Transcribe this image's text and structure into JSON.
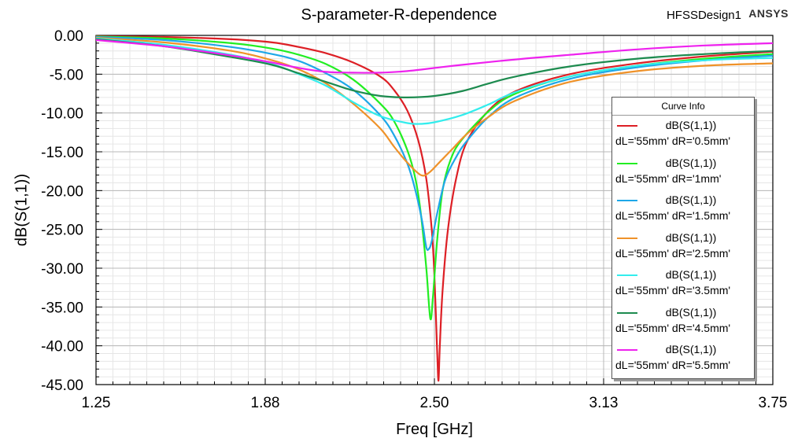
{
  "header": {
    "title": "S-parameter-R-dependence",
    "design": "HFSSDesign1",
    "brand": "ANSYS"
  },
  "legend": {
    "title": "Curve Info"
  },
  "chart_data": {
    "type": "line",
    "title": "S-parameter-R-dependence",
    "xlabel": "Freq [GHz]",
    "ylabel": "dB(S(1,1))",
    "xlim": [
      1.25,
      3.75
    ],
    "ylim": [
      -45,
      0
    ],
    "xticks": [
      "1.25",
      "1.88",
      "2.50",
      "3.13",
      "3.75"
    ],
    "xtick_values": [
      1.25,
      1.875,
      2.5,
      3.125,
      3.75
    ],
    "yticks": [
      "0.00",
      "-5.00",
      "-10.00",
      "-15.00",
      "-20.00",
      "-25.00",
      "-30.00",
      "-35.00",
      "-40.00",
      "-45.00"
    ],
    "ytick_values": [
      0,
      -5,
      -10,
      -15,
      -20,
      -25,
      -30,
      -35,
      -40,
      -45
    ],
    "grid": true,
    "legend_position": "right",
    "series": [
      {
        "name": "dB(S(1,1))",
        "label2": "dL='55mm' dR='0.5mm'",
        "color": "#dd1f25",
        "points": [
          [
            1.25,
            -0.1
          ],
          [
            1.5,
            -0.2
          ],
          [
            1.75,
            -0.5
          ],
          [
            1.9,
            -0.9
          ],
          [
            2.0,
            -1.5
          ],
          [
            2.1,
            -2.3
          ],
          [
            2.2,
            -3.5
          ],
          [
            2.3,
            -5.3
          ],
          [
            2.35,
            -7.0
          ],
          [
            2.4,
            -9.7
          ],
          [
            2.44,
            -13.5
          ],
          [
            2.47,
            -18.5
          ],
          [
            2.49,
            -25.0
          ],
          [
            2.5,
            -31.0
          ],
          [
            2.51,
            -40.5
          ],
          [
            2.515,
            -44.5
          ],
          [
            2.52,
            -40.0
          ],
          [
            2.53,
            -33.0
          ],
          [
            2.55,
            -25.0
          ],
          [
            2.58,
            -18.5
          ],
          [
            2.62,
            -13.7
          ],
          [
            2.7,
            -9.7
          ],
          [
            2.8,
            -7.2
          ],
          [
            3.0,
            -5.0
          ],
          [
            3.25,
            -3.6
          ],
          [
            3.5,
            -2.7
          ],
          [
            3.75,
            -2.1
          ]
        ]
      },
      {
        "name": "dB(S(1,1))",
        "label2": "dL='55mm' dR='1mm'",
        "color": "#22ee22",
        "points": [
          [
            1.25,
            -0.15
          ],
          [
            1.5,
            -0.4
          ],
          [
            1.75,
            -1.0
          ],
          [
            1.9,
            -1.7
          ],
          [
            2.0,
            -2.5
          ],
          [
            2.1,
            -3.7
          ],
          [
            2.2,
            -5.7
          ],
          [
            2.3,
            -8.8
          ],
          [
            2.35,
            -11.0
          ],
          [
            2.4,
            -14.8
          ],
          [
            2.43,
            -18.5
          ],
          [
            2.45,
            -23.0
          ],
          [
            2.47,
            -30.0
          ],
          [
            2.485,
            -36.5
          ],
          [
            2.495,
            -33.5
          ],
          [
            2.51,
            -26.5
          ],
          [
            2.53,
            -20.0
          ],
          [
            2.56,
            -16.0
          ],
          [
            2.6,
            -13.5
          ],
          [
            2.7,
            -9.8
          ],
          [
            2.8,
            -7.5
          ],
          [
            3.0,
            -5.3
          ],
          [
            3.25,
            -3.9
          ],
          [
            3.5,
            -3.0
          ],
          [
            3.75,
            -2.4
          ]
        ]
      },
      {
        "name": "dB(S(1,1))",
        "label2": "dL='55mm' dR='1.5mm'",
        "color": "#1ea7e8",
        "points": [
          [
            1.25,
            -0.2
          ],
          [
            1.5,
            -0.6
          ],
          [
            1.75,
            -1.5
          ],
          [
            1.9,
            -2.4
          ],
          [
            2.0,
            -3.3
          ],
          [
            2.1,
            -4.9
          ],
          [
            2.2,
            -7.0
          ],
          [
            2.3,
            -10.3
          ],
          [
            2.35,
            -12.8
          ],
          [
            2.4,
            -16.5
          ],
          [
            2.43,
            -20.0
          ],
          [
            2.455,
            -24.0
          ],
          [
            2.47,
            -27.3
          ],
          [
            2.48,
            -27.5
          ],
          [
            2.49,
            -26.5
          ],
          [
            2.51,
            -23.0
          ],
          [
            2.54,
            -18.6
          ],
          [
            2.58,
            -15.7
          ],
          [
            2.62,
            -13.6
          ],
          [
            2.7,
            -10.5
          ],
          [
            2.8,
            -8.0
          ],
          [
            3.0,
            -5.6
          ],
          [
            3.25,
            -4.1
          ],
          [
            3.5,
            -3.2
          ],
          [
            3.75,
            -2.6
          ]
        ]
      },
      {
        "name": "dB(S(1,1))",
        "label2": "dL='55mm' dR='2.5mm'",
        "color": "#ef9229",
        "points": [
          [
            1.25,
            -0.3
          ],
          [
            1.5,
            -0.9
          ],
          [
            1.75,
            -2.0
          ],
          [
            1.9,
            -3.2
          ],
          [
            2.0,
            -4.4
          ],
          [
            2.1,
            -6.2
          ],
          [
            2.2,
            -8.8
          ],
          [
            2.3,
            -12.0
          ],
          [
            2.35,
            -14.3
          ],
          [
            2.4,
            -16.4
          ],
          [
            2.45,
            -18.0
          ],
          [
            2.48,
            -17.7
          ],
          [
            2.52,
            -16.3
          ],
          [
            2.57,
            -14.5
          ],
          [
            2.62,
            -12.7
          ],
          [
            2.7,
            -10.5
          ],
          [
            2.8,
            -8.4
          ],
          [
            3.0,
            -6.0
          ],
          [
            3.25,
            -4.6
          ],
          [
            3.5,
            -3.9
          ],
          [
            3.75,
            -3.6
          ]
        ]
      },
      {
        "name": "dB(S(1,1))",
        "label2": "dL='55mm' dR='3.5mm'",
        "color": "#33eded",
        "points": [
          [
            1.25,
            -0.4
          ],
          [
            1.5,
            -1.2
          ],
          [
            1.75,
            -2.5
          ],
          [
            1.9,
            -3.7
          ],
          [
            2.0,
            -5.0
          ],
          [
            2.1,
            -6.5
          ],
          [
            2.2,
            -8.6
          ],
          [
            2.3,
            -10.4
          ],
          [
            2.4,
            -11.3
          ],
          [
            2.45,
            -11.4
          ],
          [
            2.5,
            -11.2
          ],
          [
            2.6,
            -10.3
          ],
          [
            2.7,
            -8.9
          ],
          [
            2.8,
            -7.3
          ],
          [
            3.0,
            -5.3
          ],
          [
            3.25,
            -3.9
          ],
          [
            3.5,
            -3.2
          ],
          [
            3.75,
            -2.9
          ]
        ]
      },
      {
        "name": "dB(S(1,1))",
        "label2": "dL='55mm' dR='4.5mm'",
        "color": "#1d8b4f",
        "points": [
          [
            1.25,
            -0.5
          ],
          [
            1.5,
            -1.4
          ],
          [
            1.75,
            -2.8
          ],
          [
            1.9,
            -3.8
          ],
          [
            2.0,
            -4.9
          ],
          [
            2.1,
            -6.0
          ],
          [
            2.2,
            -7.1
          ],
          [
            2.3,
            -7.8
          ],
          [
            2.4,
            -8.0
          ],
          [
            2.5,
            -7.8
          ],
          [
            2.6,
            -7.2
          ],
          [
            2.7,
            -6.2
          ],
          [
            2.8,
            -5.3
          ],
          [
            3.0,
            -4.0
          ],
          [
            3.25,
            -3.0
          ],
          [
            3.5,
            -2.4
          ],
          [
            3.75,
            -2.0
          ]
        ]
      },
      {
        "name": "dB(S(1,1))",
        "label2": "dL='55mm' dR='5.5mm'",
        "color": "#ee22ee",
        "points": [
          [
            1.25,
            -0.6
          ],
          [
            1.5,
            -1.4
          ],
          [
            1.75,
            -2.6
          ],
          [
            1.9,
            -3.5
          ],
          [
            2.0,
            -4.2
          ],
          [
            2.1,
            -4.7
          ],
          [
            2.2,
            -4.8
          ],
          [
            2.3,
            -4.8
          ],
          [
            2.4,
            -4.6
          ],
          [
            2.5,
            -4.2
          ],
          [
            2.6,
            -3.8
          ],
          [
            2.8,
            -3.1
          ],
          [
            3.0,
            -2.5
          ],
          [
            3.25,
            -1.8
          ],
          [
            3.5,
            -1.3
          ],
          [
            3.75,
            -1.0
          ]
        ]
      }
    ]
  }
}
